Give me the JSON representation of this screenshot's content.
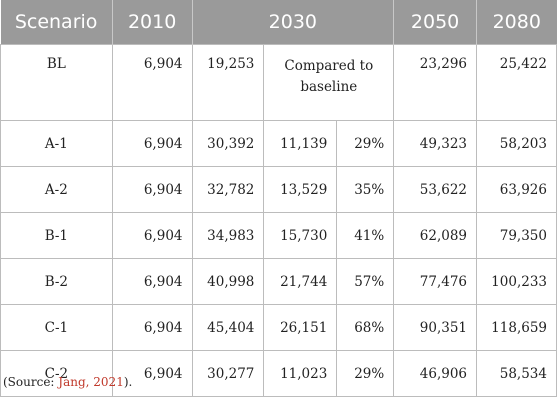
{
  "header": {
    "scenario": "Scenario",
    "y2010": "2010",
    "y2030": "2030",
    "y2050": "2050",
    "y2080": "2080"
  },
  "baseline": {
    "scenario": "BL",
    "v2010": "6,904",
    "v2030": "19,253",
    "note": "Compared to baseline",
    "v2050": "23,296",
    "v2080": "25,422"
  },
  "rows": [
    {
      "scenario": "A-1",
      "v2010": "6,904",
      "v2030": "30,392",
      "diff": "11,139",
      "pct": "29%",
      "v2050": "49,323",
      "v2080": "58,203"
    },
    {
      "scenario": "A-2",
      "v2010": "6,904",
      "v2030": "32,782",
      "diff": "13,529",
      "pct": "35%",
      "v2050": "53,622",
      "v2080": "63,926"
    },
    {
      "scenario": "B-1",
      "v2010": "6,904",
      "v2030": "34,983",
      "diff": "15,730",
      "pct": "41%",
      "v2050": "62,089",
      "v2080": "79,350"
    },
    {
      "scenario": "B-2",
      "v2010": "6,904",
      "v2030": "40,998",
      "diff": "21,744",
      "pct": "57%",
      "v2050": "77,476",
      "v2080": "100,233"
    },
    {
      "scenario": "C-1",
      "v2010": "6,904",
      "v2030": "45,404",
      "diff": "26,151",
      "pct": "68%",
      "v2050": "90,351",
      "v2080": "118,659"
    },
    {
      "scenario": "C-2",
      "v2010": "6,904",
      "v2030": "30,277",
      "diff": "11,023",
      "pct": "29%",
      "v2050": "46,906",
      "v2080": "58,534"
    }
  ],
  "source": {
    "prefix": "(Source: ",
    "link": "Jang, 2021",
    "suffix": ")."
  },
  "colors": {
    "header_bg": "#9a9a9a",
    "header_text": "#ffffff",
    "link": "#c0392b"
  }
}
